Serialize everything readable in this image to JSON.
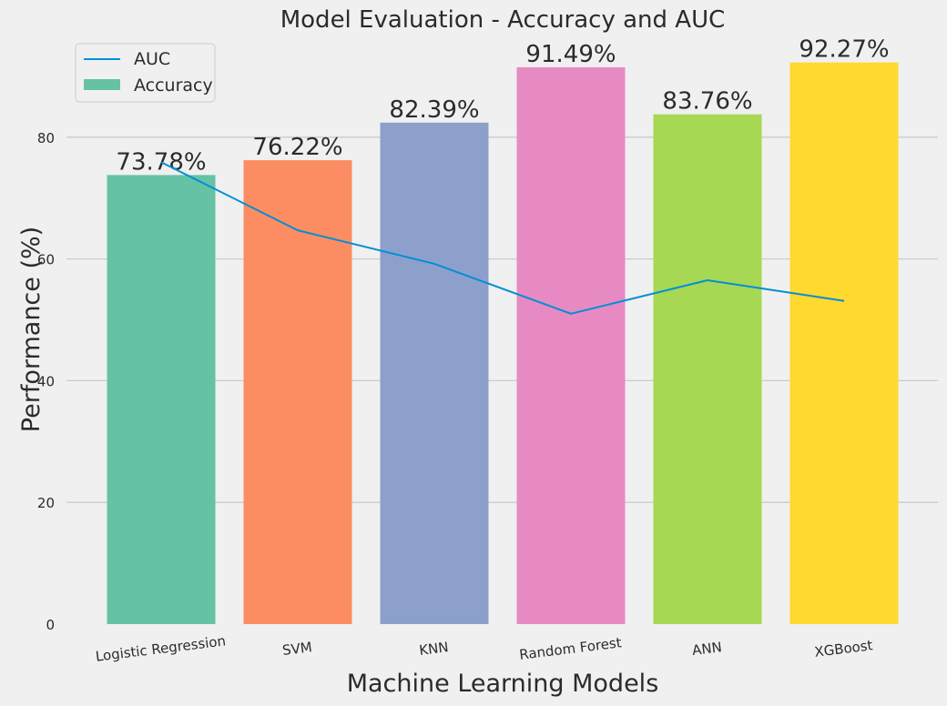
{
  "chart_data": {
    "type": "bar",
    "title": "Model Evaluation - Accuracy and AUC",
    "xlabel": "Machine Learning Models",
    "ylabel": "Performance (%)",
    "ylim": [
      0,
      95
    ],
    "yticks": [
      0,
      20,
      40,
      60,
      80
    ],
    "categories": [
      "Logistic Regression",
      "SVM",
      "KNN",
      "Random Forest",
      "ANN",
      "XGBoost"
    ],
    "series": [
      {
        "name": "Accuracy",
        "kind": "bar",
        "values": [
          73.78,
          76.22,
          82.39,
          91.49,
          83.76,
          92.27
        ],
        "labels": [
          "73.78%",
          "76.22%",
          "82.39%",
          "91.49%",
          "83.76%",
          "92.27%"
        ],
        "colors": [
          "#66c2a5",
          "#fc8d62",
          "#8da0cb",
          "#e78ac3",
          "#a6d854",
          "#ffd92f"
        ]
      },
      {
        "name": "AUC",
        "kind": "line",
        "values": [
          75.9,
          64.7,
          59.2,
          51.0,
          56.5,
          53.1
        ],
        "color": "#008fd5"
      }
    ],
    "legend": {
      "placement": "top-left",
      "entries": [
        "AUC",
        "Accuracy"
      ]
    },
    "grid": "horizontal",
    "background": "#f0f0f0"
  }
}
